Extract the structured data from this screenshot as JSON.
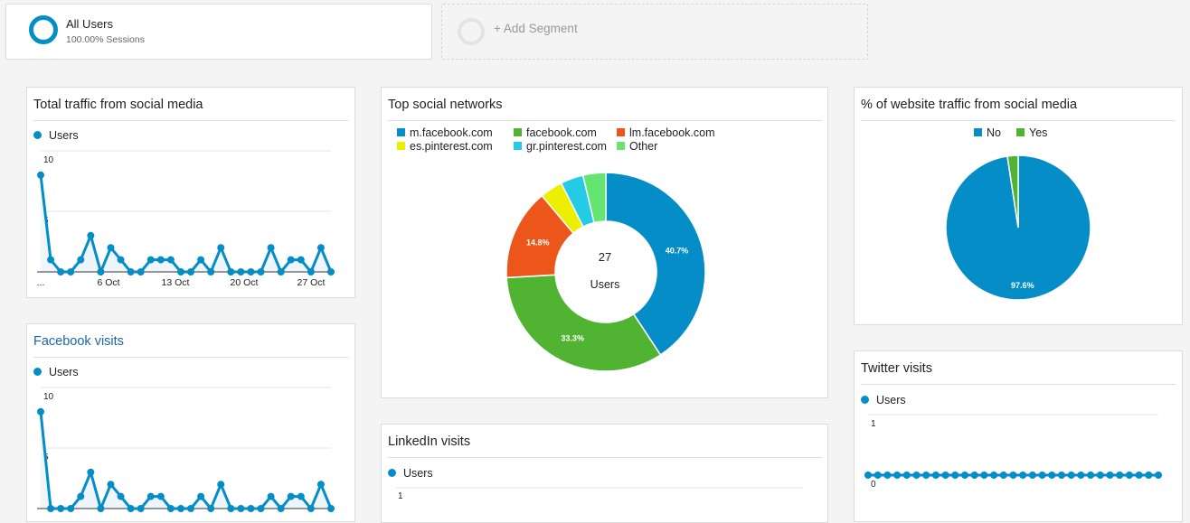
{
  "segments": {
    "all_users": {
      "title": "All Users",
      "subtitle": "100.00% Sessions"
    },
    "add_segment": {
      "label": "+ Add Segment"
    }
  },
  "cards": {
    "total_traffic": {
      "title": "Total traffic from social media",
      "chart_data": {
        "type": "line",
        "series": [
          {
            "name": "Users",
            "values": [
              8,
              1,
              0,
              0,
              1,
              3,
              0,
              2,
              1,
              0,
              0,
              1,
              1,
              1,
              0,
              0,
              1,
              0,
              2,
              0,
              0,
              0,
              0,
              2,
              0,
              1,
              1,
              0,
              2,
              0
            ]
          }
        ],
        "y_ticks": [
          "10",
          "5"
        ],
        "x_labels": [
          "...",
          "6 Oct",
          "13 Oct",
          "20 Oct",
          "27 Oct"
        ],
        "ylim": [
          0,
          10
        ],
        "color": "#058dc7"
      }
    },
    "facebook_visits": {
      "title": "Facebook visits",
      "chart_data": {
        "type": "line",
        "series": [
          {
            "name": "Users",
            "values": [
              8,
              0,
              0,
              0,
              1,
              3,
              0,
              2,
              1,
              0,
              0,
              1,
              1,
              0,
              0,
              0,
              1,
              0,
              2,
              0,
              0,
              0,
              0,
              1,
              0,
              1,
              1,
              0,
              2,
              0
            ]
          }
        ],
        "y_ticks": [
          "10",
          "5"
        ],
        "ylim": [
          0,
          10
        ],
        "color": "#058dc7"
      }
    },
    "top_social": {
      "title": "Top social networks",
      "legend": [
        {
          "label": "m.facebook.com",
          "color": "#058dc7"
        },
        {
          "label": "facebook.com",
          "color": "#50b432"
        },
        {
          "label": "lm.facebook.com",
          "color": "#ed561b"
        },
        {
          "label": "es.pinterest.com",
          "color": "#edef00"
        },
        {
          "label": "gr.pinterest.com",
          "color": "#24cbe5"
        },
        {
          "label": "Other",
          "color": "#64e572"
        }
      ],
      "center_value": "27",
      "center_label": "Users",
      "chart_data": {
        "type": "pie",
        "values": [
          40.7,
          33.3,
          14.8,
          3.7,
          3.7,
          3.7
        ],
        "data_labels": [
          "40.7%",
          "33.3%",
          "14.8%",
          "",
          "",
          ""
        ]
      }
    },
    "pct_social": {
      "title": "% of website traffic from social media",
      "legend": [
        {
          "label": "No",
          "color": "#058dc7"
        },
        {
          "label": "Yes",
          "color": "#50b432"
        }
      ],
      "chart_data": {
        "type": "pie",
        "values": [
          97.6,
          2.4
        ],
        "data_labels": [
          "97.6%",
          ""
        ]
      }
    },
    "linkedin_visits": {
      "title": "LinkedIn visits",
      "chart_data": {
        "type": "line",
        "series": [
          {
            "name": "Users",
            "values": []
          }
        ],
        "y_ticks": [
          "1"
        ],
        "color": "#058dc7"
      }
    },
    "twitter_visits": {
      "title": "Twitter visits",
      "chart_data": {
        "type": "line",
        "series": [
          {
            "name": "Users",
            "values": [
              0,
              0,
              0,
              0,
              0,
              0,
              0,
              0,
              0,
              0,
              0,
              0,
              0,
              0,
              0,
              0,
              0,
              0,
              0,
              0,
              0,
              0,
              0,
              0,
              0,
              0,
              0,
              0,
              0,
              0,
              0
            ]
          }
        ],
        "y_ticks": [
          "1",
          "0"
        ],
        "ylim": [
          0,
          1
        ],
        "color": "#058dc7"
      }
    }
  }
}
